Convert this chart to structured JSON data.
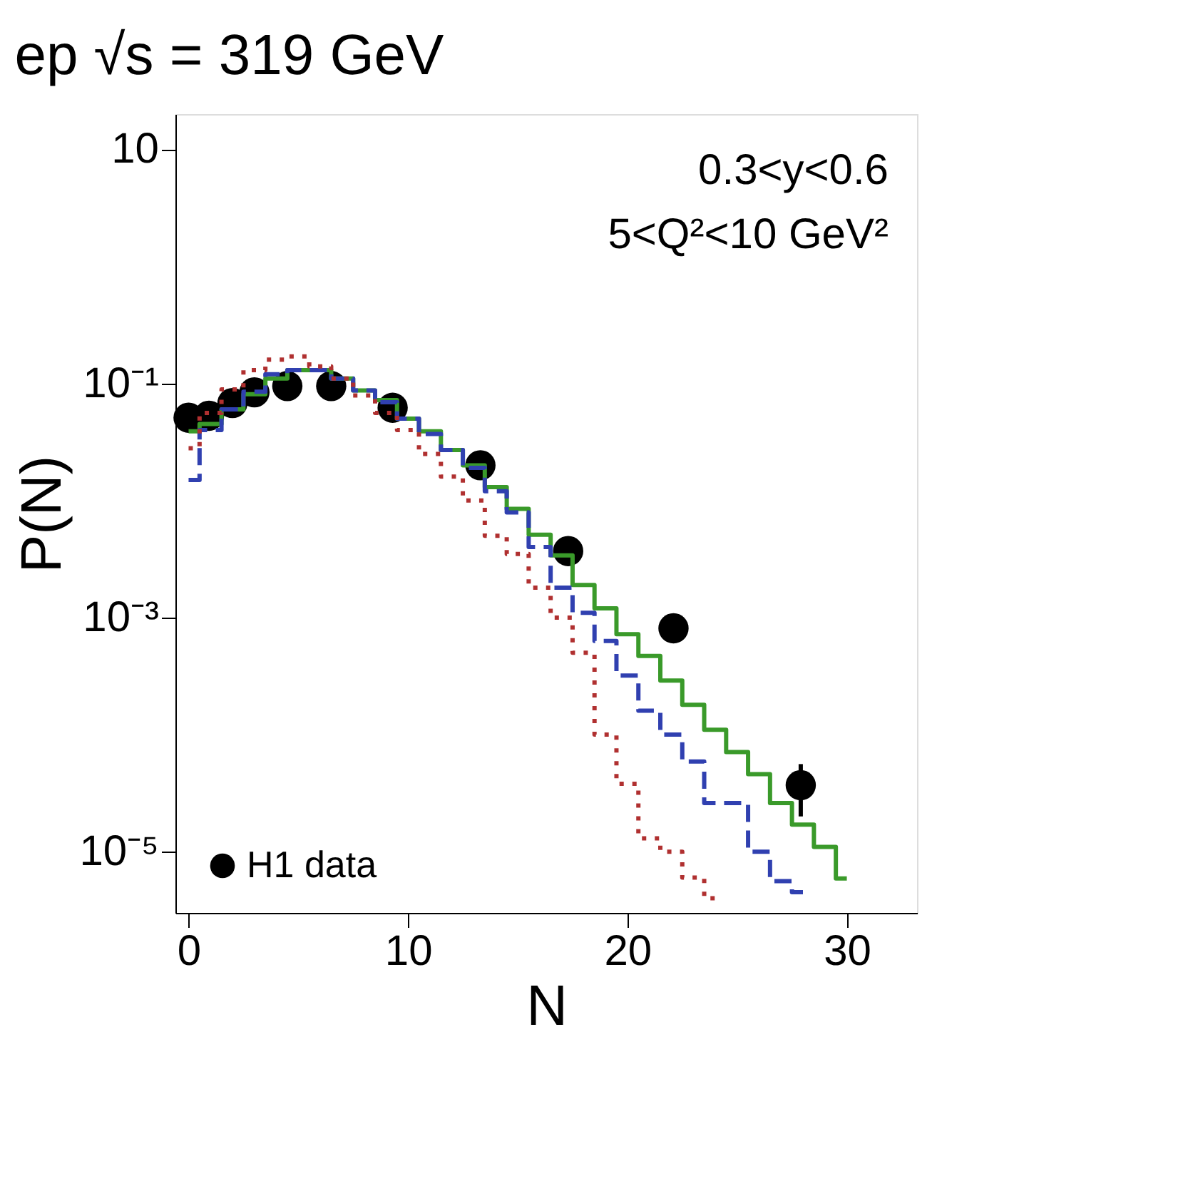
{
  "chart_data": {
    "type": "step",
    "title": "ep √s = 319 GeV",
    "xlabel": "N",
    "ylabel": "P(N)",
    "annotations": [
      "0.3<y<0.6",
      "5<Q²<10 GeV²"
    ],
    "log": "y",
    "grid": false,
    "legend": "bottom left",
    "xlim": [
      -0.6,
      33.2
    ],
    "xticks": [
      0,
      10,
      20,
      30
    ],
    "ylim": [
      3e-06,
      20
    ],
    "yticks": [
      {
        "value": 10,
        "label": "10"
      },
      {
        "value": 0.1,
        "label": "10⁻¹"
      },
      {
        "value": 0.001,
        "label": "10⁻³"
      },
      {
        "value": 1e-05,
        "label": "10⁻⁵"
      }
    ],
    "series": [
      {
        "name": "H1 data",
        "type": "scatter",
        "marker": "circle",
        "color": "#000000",
        "x": [
          0,
          0.93,
          2,
          3,
          4.5,
          6.5,
          9.3,
          13.3,
          17.3,
          22.1,
          27.9
        ],
        "values": [
          0.051,
          0.053,
          0.068,
          0.084,
          0.095,
          0.095,
          0.062,
          0.02,
          0.0037,
          0.00081,
          3.7e-05
        ],
        "errors": [
          null,
          null,
          null,
          null,
          null,
          null,
          null,
          null,
          null,
          null,
          [
            2e-05,
            5.6e-05
          ]
        ]
      },
      {
        "color": "#3a9a2a",
        "line_style": "solid",
        "x": [
          0,
          1,
          2,
          3,
          4,
          5,
          6,
          7,
          8,
          9,
          10,
          11,
          12,
          13,
          14,
          15,
          16,
          17,
          18,
          19,
          20,
          21,
          22,
          23,
          24,
          25,
          26,
          27,
          28,
          29,
          30
        ],
        "values": [
          0.039,
          0.045,
          0.06,
          0.081,
          0.11,
          0.13,
          0.13,
          0.11,
          0.087,
          0.072,
          0.05,
          0.039,
          0.027,
          0.02,
          0.013,
          0.0085,
          0.0051,
          0.0034,
          0.0019,
          0.0012,
          0.00072,
          0.00047,
          0.00029,
          0.00018,
          0.00011,
          7.1e-05,
          4.6e-05,
          2.6e-05,
          1.7e-05,
          1.1e-05,
          5.9e-06
        ]
      },
      {
        "color": "#3040b0",
        "line_style": "dashed",
        "x": [
          0,
          1,
          2,
          3,
          4,
          5,
          6,
          7,
          8,
          9,
          10,
          11,
          12,
          13,
          14,
          15,
          16,
          17,
          18,
          19,
          20,
          21,
          22,
          23,
          24,
          25,
          26,
          27,
          28
        ],
        "values": [
          0.015,
          0.04,
          0.06,
          0.085,
          0.12,
          0.13,
          0.13,
          0.11,
          0.087,
          0.069,
          0.05,
          0.037,
          0.027,
          0.019,
          0.012,
          0.0079,
          0.004,
          0.0018,
          0.0011,
          0.00063,
          0.00032,
          0.00016,
          0.0001,
          5.9e-05,
          2.6e-05,
          2.6e-05,
          1e-05,
          5.6e-06,
          4.5e-06
        ]
      },
      {
        "color": "#b03030",
        "line_style": "dotted",
        "x": [
          0,
          1,
          2,
          3,
          4,
          5,
          6,
          7,
          8,
          9,
          10,
          11,
          12,
          13,
          14,
          15,
          16,
          17,
          18,
          19,
          20,
          21,
          22,
          23,
          24
        ],
        "values": [
          0.028,
          0.056,
          0.089,
          0.13,
          0.16,
          0.17,
          0.14,
          0.11,
          0.079,
          0.056,
          0.04,
          0.025,
          0.016,
          0.01,
          0.005,
          0.0035,
          0.0018,
          0.001,
          0.0005,
          0.0001,
          3.8e-05,
          1.3e-05,
          1e-05,
          6e-06,
          4e-06
        ]
      }
    ]
  }
}
